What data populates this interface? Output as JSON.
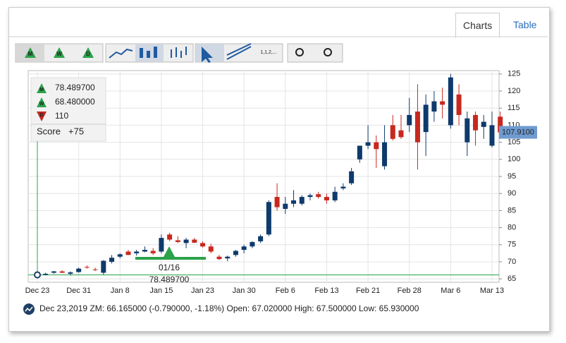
{
  "ui": {
    "tabs": [
      "Charts",
      "Table"
    ],
    "period_buttons": [
      "M",
      "W",
      "D"
    ],
    "tool_label": "1,1,2,...",
    "legend_rows": [
      {
        "icon": "M",
        "text": "78.489700"
      },
      {
        "icon": "W",
        "text": "68.480000"
      },
      {
        "icon": "D",
        "text": "110"
      }
    ],
    "score_label": "Score",
    "score_value": "+75",
    "flag_date": "01/16",
    "flag_value": "78.489700",
    "last_price": {
      "value": 107.91,
      "label": "107.9100"
    },
    "status": "Dec 23,2019 ZM: 66.165000 (-0.790000, -1.18%) Open: 67.020000 High: 67.500000 Low: 65.930000"
  },
  "chart_data": {
    "type": "candlestick",
    "categories": [
      "Dec 23",
      null,
      null,
      null,
      null,
      "Dec 31",
      null,
      null,
      null,
      null,
      "Jan 8",
      null,
      null,
      null,
      null,
      "Jan 15",
      null,
      null,
      null,
      null,
      "Jan 23",
      null,
      null,
      null,
      null,
      "Jan 30",
      null,
      null,
      null,
      null,
      "Feb 6",
      null,
      null,
      null,
      null,
      "Feb 13",
      null,
      null,
      null,
      null,
      "Feb 21",
      null,
      null,
      null,
      null,
      "Feb 28",
      null,
      null,
      null,
      null,
      "Mar 6",
      null,
      null,
      null,
      null,
      "Mar 13",
      null
    ],
    "open": [
      67.02,
      66.2,
      66.8,
      67.2,
      66.5,
      67.0,
      68.5,
      67.8,
      66.8,
      70.0,
      71.5,
      73.0,
      72.5,
      73.0,
      73.2,
      73.0,
      78.0,
      76.3,
      75.5,
      76.5,
      75.5,
      74.5,
      71.5,
      71.0,
      72.0,
      73.5,
      74.5,
      76.0,
      78.0,
      89.0,
      85.5,
      87.0,
      87.0,
      89.0,
      89.8,
      89.0,
      88.0,
      91.5,
      93.0,
      100.0,
      104.0,
      105.0,
      98.0,
      110.0,
      108.5,
      110.0,
      114.0,
      108.0,
      114.0,
      117.0,
      110.0,
      119.0,
      105.0,
      113.0,
      109.5,
      104.0,
      112.5
    ],
    "high": [
      67.5,
      66.8,
      67.3,
      67.5,
      67.2,
      68.3,
      69.0,
      68.3,
      70.5,
      72.0,
      72.5,
      73.5,
      73.5,
      74.5,
      74.0,
      78.0,
      78.5,
      77.5,
      77.0,
      77.0,
      76.0,
      75.3,
      72.0,
      71.8,
      73.5,
      75.0,
      76.0,
      78.0,
      88.0,
      93.0,
      89.0,
      91.0,
      89.5,
      90.0,
      90.5,
      90.0,
      92.0,
      93.0,
      97.5,
      104.0,
      110.0,
      107.0,
      110.0,
      113.0,
      113.0,
      118.0,
      122.0,
      119.0,
      120.0,
      121.0,
      125.0,
      122.0,
      114.0,
      114.0,
      113.0,
      114.0,
      114.0
    ],
    "low": [
      65.93,
      66.0,
      66.5,
      66.7,
      66.0,
      66.8,
      68.0,
      67.3,
      66.3,
      69.5,
      71.0,
      72.0,
      71.8,
      72.8,
      72.0,
      72.5,
      76.0,
      75.5,
      74.0,
      75.5,
      74.2,
      72.5,
      70.5,
      70.2,
      71.5,
      72.5,
      74.0,
      75.5,
      77.5,
      85.0,
      84.0,
      86.0,
      86.5,
      88.0,
      88.5,
      87.0,
      87.5,
      91.0,
      92.5,
      99.0,
      103.0,
      97.5,
      97.0,
      105.5,
      106.0,
      108.0,
      97.0,
      101.0,
      111.0,
      112.0,
      109.0,
      110.0,
      101.0,
      104.0,
      106.0,
      103.5,
      106.0
    ],
    "close": [
      66.165,
      66.5,
      67.2,
      66.8,
      66.9,
      68.0,
      68.3,
      67.6,
      70.3,
      71.2,
      72.2,
      72.0,
      73.0,
      73.5,
      72.5,
      77.0,
      76.5,
      75.8,
      76.5,
      75.6,
      74.5,
      73.0,
      70.8,
      71.5,
      73.2,
      74.5,
      75.8,
      77.5,
      87.5,
      86.0,
      87.0,
      88.0,
      89.0,
      89.5,
      89.0,
      88.0,
      90.5,
      92.0,
      96.5,
      104.0,
      105.0,
      103.0,
      105.0,
      106.0,
      106.5,
      113.0,
      105.0,
      116.0,
      117.0,
      116.0,
      124.0,
      113.0,
      112.0,
      108.5,
      111.0,
      110.0,
      107.91
    ],
    "up_color": "#0e3a6c",
    "down_color": "#c8281e",
    "ylim": [
      64,
      126
    ],
    "yticks": [
      65,
      70,
      75,
      80,
      85,
      90,
      95,
      100,
      105,
      110,
      115,
      120,
      125
    ],
    "grid": true
  }
}
